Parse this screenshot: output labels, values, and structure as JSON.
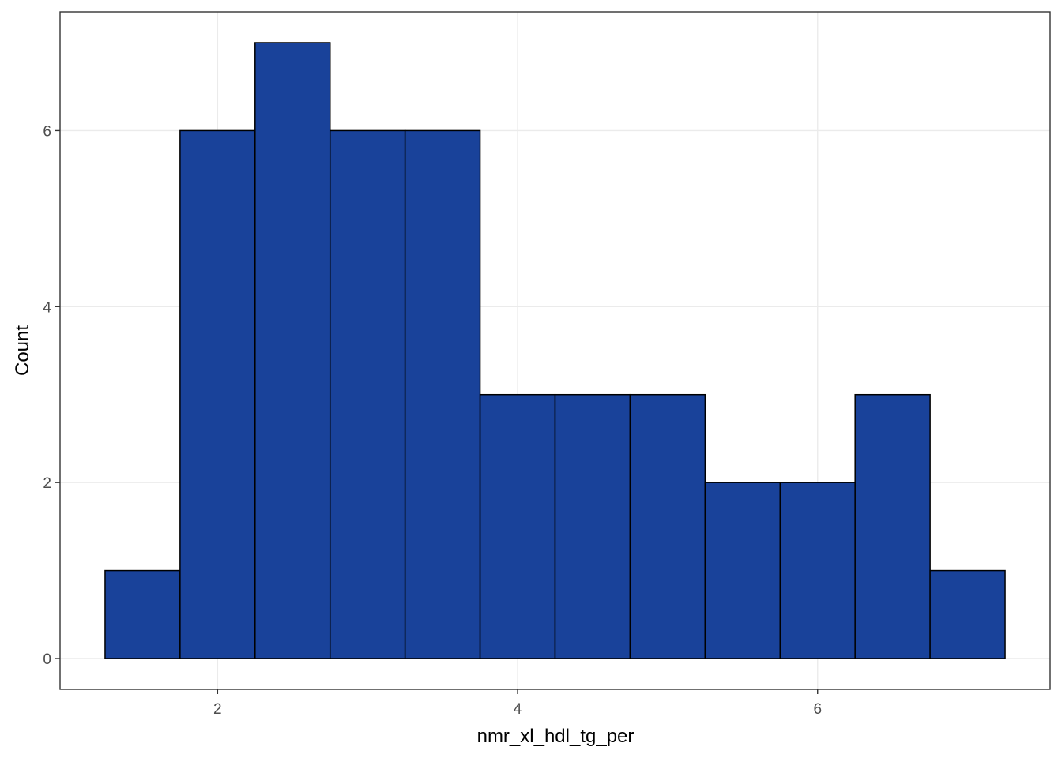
{
  "chart_data": {
    "type": "histogram",
    "x_label": "nmr_xl_hdl_tg_per",
    "y_label": "Count",
    "bins": [
      1.25,
      1.75,
      2.25,
      2.75,
      3.25,
      3.75,
      4.25,
      4.75,
      5.25,
      5.75,
      6.25,
      6.75,
      7.25
    ],
    "values": [
      1,
      6,
      7,
      6,
      6,
      3,
      3,
      3,
      2,
      2,
      3,
      1
    ],
    "color": "#19429a",
    "edge_color": "#000000",
    "xlim": [
      0.95,
      7.55
    ],
    "ylim": [
      -0.35,
      7.35
    ],
    "xticks": [
      2,
      4,
      6
    ],
    "yticks": [
      0,
      2,
      4,
      6
    ],
    "grid": true
  }
}
